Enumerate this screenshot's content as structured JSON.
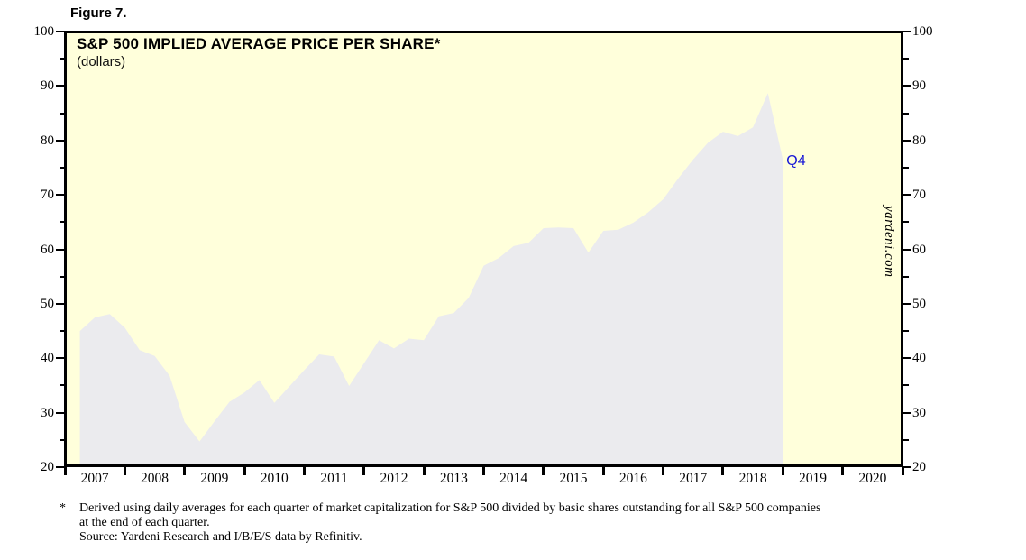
{
  "figure_label": "Figure 7.",
  "header": {
    "title": "S&P 500 IMPLIED AVERAGE PRICE PER SHARE*",
    "subtitle": "(dollars)"
  },
  "annotations": {
    "last_point_label": "Q4",
    "watermark": "yardeni.com"
  },
  "footnote": {
    "marker": "*",
    "text": "Derived using daily averages for each quarter of market capitalization for S&P 500 divided by basic shares outstanding for all S&P 500 companies at the end of each quarter.",
    "source": "Source: Yardeni Research and I/B/E/S data by Refinitiv."
  },
  "chart_data": {
    "type": "line",
    "title": "S&P 500 IMPLIED AVERAGE PRICE PER SHARE*",
    "ylabel": "dollars",
    "ylim": [
      20,
      100
    ],
    "y_major_ticks": [
      100,
      90,
      80,
      70,
      60,
      50,
      40,
      30,
      20
    ],
    "y_minor_tick_step": 5,
    "x_years": [
      2007,
      2008,
      2009,
      2010,
      2011,
      2012,
      2013,
      2014,
      2015,
      2016,
      2017,
      2018,
      2019,
      2020
    ],
    "grid": false,
    "legend": "none",
    "data_frequency": "quarterly",
    "data_start": "2007Q1",
    "data_end": "2018Q4",
    "last_point_annotation": "Q4",
    "series": [
      {
        "name": "S&P 500 implied average price per share (dollars)",
        "values": [
          45.0,
          47.5,
          48.1,
          45.6,
          41.5,
          40.4,
          36.8,
          28.3,
          24.7,
          28.4,
          32.0,
          33.7,
          36.0,
          31.8,
          34.8,
          37.8,
          40.7,
          40.3,
          34.9,
          39.1,
          43.3,
          41.8,
          43.6,
          43.3,
          47.7,
          48.3,
          51.1,
          57.0,
          58.4,
          60.6,
          61.2,
          63.9,
          64.0,
          63.9,
          59.4,
          63.4,
          63.6,
          64.9,
          66.8,
          69.2,
          73.0,
          76.5,
          79.6,
          81.6,
          80.8,
          82.4,
          88.7,
          76.5
        ]
      }
    ],
    "colors": {
      "line": "#0b0bdc",
      "area_fill": "#ebebee",
      "plot_background": "#ffffdb",
      "annotation_text": "#1414d6"
    }
  }
}
